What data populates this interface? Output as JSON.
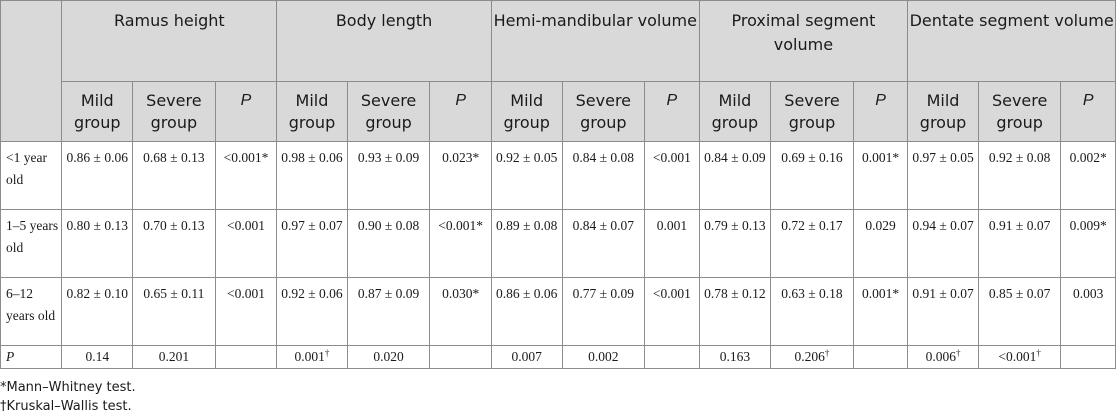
{
  "header": {
    "groups": [
      "Ramus height",
      "Body length",
      "Hemi-mandibular volume",
      "Proximal segment volume",
      "Dentate segment volume"
    ],
    "mild": "Mild group",
    "severe": "Severe group",
    "p": "P"
  },
  "rows": [
    {
      "label": "<1 year old",
      "cells": [
        {
          "v": "0.86 ± 0.06",
          "sup": ""
        },
        {
          "v": "0.68 ± 0.13",
          "sup": ""
        },
        {
          "v": "<0.001*",
          "sup": ""
        },
        {
          "v": "0.98 ± 0.06",
          "sup": ""
        },
        {
          "v": "0.93 ± 0.09",
          "sup": ""
        },
        {
          "v": "0.023*",
          "sup": ""
        },
        {
          "v": "0.92 ± 0.05",
          "sup": ""
        },
        {
          "v": "0.84 ± 0.08",
          "sup": ""
        },
        {
          "v": "<0.001",
          "sup": ""
        },
        {
          "v": "0.84 ± 0.09",
          "sup": ""
        },
        {
          "v": "0.69 ± 0.16",
          "sup": ""
        },
        {
          "v": "0.001*",
          "sup": ""
        },
        {
          "v": "0.97 ± 0.05",
          "sup": ""
        },
        {
          "v": "0.92 ± 0.08",
          "sup": ""
        },
        {
          "v": "0.002*",
          "sup": ""
        }
      ]
    },
    {
      "label": "1–5 years old",
      "cells": [
        {
          "v": "0.80 ± 0.13",
          "sup": ""
        },
        {
          "v": "0.70 ± 0.13",
          "sup": ""
        },
        {
          "v": "<0.001",
          "sup": ""
        },
        {
          "v": "0.97 ± 0.07",
          "sup": ""
        },
        {
          "v": "0.90 ± 0.08",
          "sup": ""
        },
        {
          "v": "<0.001*",
          "sup": ""
        },
        {
          "v": "0.89 ± 0.08",
          "sup": ""
        },
        {
          "v": "0.84 ± 0.07",
          "sup": ""
        },
        {
          "v": "0.001",
          "sup": ""
        },
        {
          "v": "0.79 ± 0.13",
          "sup": ""
        },
        {
          "v": "0.72 ± 0.17",
          "sup": ""
        },
        {
          "v": "0.029",
          "sup": ""
        },
        {
          "v": "0.94 ± 0.07",
          "sup": ""
        },
        {
          "v": "0.91 ± 0.07",
          "sup": ""
        },
        {
          "v": "0.009*",
          "sup": ""
        }
      ]
    },
    {
      "label": "6–12 years old",
      "cells": [
        {
          "v": "0.82 ± 0.10",
          "sup": ""
        },
        {
          "v": "0.65 ± 0.11",
          "sup": ""
        },
        {
          "v": "<0.001",
          "sup": ""
        },
        {
          "v": "0.92 ± 0.06",
          "sup": ""
        },
        {
          "v": "0.87 ± 0.09",
          "sup": ""
        },
        {
          "v": "0.030*",
          "sup": ""
        },
        {
          "v": "0.86 ± 0.06",
          "sup": ""
        },
        {
          "v": "0.77 ± 0.09",
          "sup": ""
        },
        {
          "v": "<0.001",
          "sup": ""
        },
        {
          "v": "0.78 ± 0.12",
          "sup": ""
        },
        {
          "v": "0.63 ± 0.18",
          "sup": ""
        },
        {
          "v": "0.001*",
          "sup": ""
        },
        {
          "v": "0.91 ± 0.07",
          "sup": ""
        },
        {
          "v": "0.85 ± 0.07",
          "sup": ""
        },
        {
          "v": "0.003",
          "sup": ""
        }
      ]
    }
  ],
  "p_row": {
    "label": "P",
    "cells": [
      {
        "v": "0.14",
        "sup": ""
      },
      {
        "v": "0.201",
        "sup": ""
      },
      {
        "v": "",
        "sup": ""
      },
      {
        "v": "0.001",
        "sup": "†"
      },
      {
        "v": "0.020",
        "sup": ""
      },
      {
        "v": "",
        "sup": ""
      },
      {
        "v": "0.007",
        "sup": ""
      },
      {
        "v": "0.002",
        "sup": ""
      },
      {
        "v": "",
        "sup": ""
      },
      {
        "v": "0.163",
        "sup": ""
      },
      {
        "v": "0.206",
        "sup": "†"
      },
      {
        "v": "",
        "sup": ""
      },
      {
        "v": "0.006",
        "sup": "†"
      },
      {
        "v": "<0.001",
        "sup": "†"
      },
      {
        "v": "",
        "sup": ""
      }
    ]
  },
  "footnotes": [
    "*Mann–Whitney test.",
    "†Kruskal–Wallis test."
  ]
}
